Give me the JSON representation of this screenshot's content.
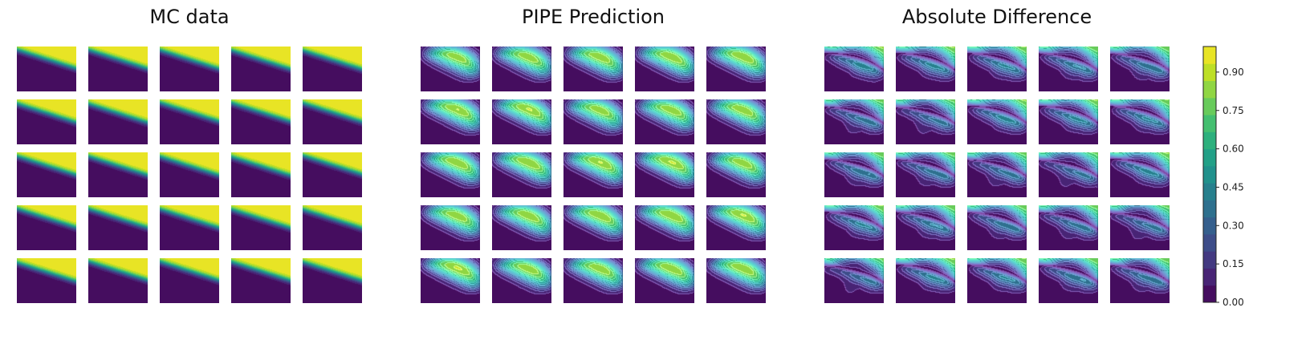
{
  "chart_data": {
    "type": "heatmap",
    "layout": "three panels, each a 5x5 grid of filled-contour subplots, shared colorbar on the right",
    "colormap": "viridis",
    "panels": [
      {
        "title": "MC data",
        "rows": 5,
        "cols": 5,
        "pattern": "mc"
      },
      {
        "title": "PIPE Prediction",
        "rows": 5,
        "cols": 5,
        "pattern": "pred"
      },
      {
        "title": "Absolute Difference",
        "rows": 5,
        "cols": 5,
        "pattern": "diff"
      }
    ],
    "colorbar": {
      "min": 0.0,
      "max": 1.0,
      "ticks": [
        0.0,
        0.15,
        0.3,
        0.45,
        0.6,
        0.75,
        0.9
      ],
      "tick_labels": [
        "0.00",
        "0.15",
        "0.30",
        "0.45",
        "0.60",
        "0.75",
        "0.90"
      ],
      "levels": 15
    },
    "axes": "off"
  }
}
